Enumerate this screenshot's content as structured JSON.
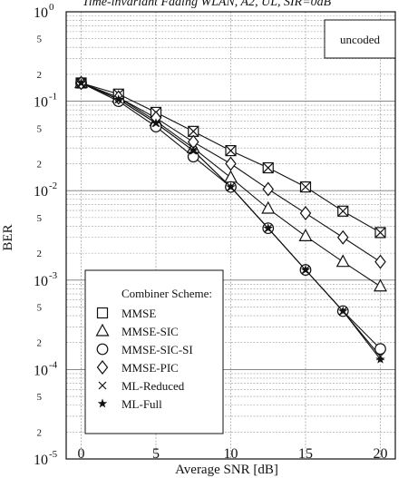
{
  "chart_data": {
    "type": "line",
    "title": "Time-invariant Fading WLAN, A2, UL, SIR=0dB",
    "annotation": "uncoded",
    "xlabel": "Average SNR [dB]",
    "ylabel": "BER",
    "xlim": [
      -1,
      21
    ],
    "x_ticks": [
      0,
      5,
      10,
      15,
      20
    ],
    "ylog": true,
    "ylim": [
      1e-05,
      1
    ],
    "y_decade_labels": [
      {
        "exp": 0,
        "base": "10",
        "power": "0"
      },
      {
        "exp": -1,
        "base": "10",
        "power": "-1"
      },
      {
        "exp": -2,
        "base": "10",
        "power": "-2"
      },
      {
        "exp": -3,
        "base": "10",
        "power": "-3"
      },
      {
        "exp": -4,
        "base": "10",
        "power": "-4"
      },
      {
        "exp": -5,
        "base": "10",
        "power": "-5"
      }
    ],
    "y_minor_labels": [
      "2",
      "5"
    ],
    "grid": true,
    "legend_title": "Combiner Scheme:",
    "legend_position": "bottom-left",
    "x": [
      0,
      2.5,
      5,
      7.5,
      10,
      12.5,
      15,
      17.5,
      20
    ],
    "series": [
      {
        "name": "MMSE",
        "marker": "square-x",
        "values": [
          0.16,
          0.12,
          0.075,
          0.046,
          0.028,
          0.018,
          0.011,
          0.0059,
          0.0034
        ]
      },
      {
        "name": "MMSE-SIC",
        "marker": "triangle",
        "values": [
          0.16,
          0.11,
          0.06,
          0.03,
          0.014,
          0.0063,
          0.0031,
          0.0016,
          0.00085
        ]
      },
      {
        "name": "MMSE-SIC-SI",
        "marker": "circle",
        "values": [
          0.16,
          0.1,
          0.052,
          0.024,
          0.011,
          0.0038,
          0.0013,
          0.00045,
          0.00017
        ]
      },
      {
        "name": "MMSE-PIC",
        "marker": "diamond",
        "values": [
          0.16,
          0.11,
          0.065,
          0.035,
          0.02,
          0.0104,
          0.0056,
          0.003,
          0.0016
        ]
      },
      {
        "name": "ML-Reduced",
        "marker": "x",
        "values": [
          0.16,
          0.105,
          0.057,
          0.028,
          0.011,
          0.0038,
          0.0013,
          0.00045,
          0.00014
        ]
      },
      {
        "name": "ML-Full",
        "marker": "star",
        "values": [
          0.16,
          0.105,
          0.057,
          0.028,
          0.011,
          0.0038,
          0.0013,
          0.00045,
          0.00013
        ]
      }
    ]
  }
}
